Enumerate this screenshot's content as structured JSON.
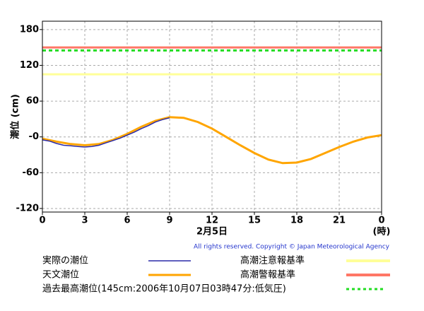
{
  "chart_data": {
    "type": "line",
    "y_label": "潮位 (cm)",
    "x_label": "2月5日",
    "x_unit": "(時)",
    "copyright": "All rights reserved. Copyright © Japan Meteorological Agency",
    "xlim": [
      0,
      24
    ],
    "xticks": [
      0,
      3,
      6,
      9,
      12,
      15,
      18,
      21,
      {
        "value": 24,
        "label": "0"
      }
    ],
    "ylim": [
      -126,
      194
    ],
    "yticks": [
      -120,
      -60,
      {
        "value": 0,
        "label": "-0"
      },
      60,
      120,
      180
    ],
    "grid": true,
    "series": [
      {
        "name": "実際の潮位",
        "color": "#2a2aa8",
        "x": [
          0,
          0.5,
          1,
          1.5,
          2,
          2.5,
          3,
          3.5,
          4,
          4.5,
          5,
          5.5,
          6,
          6.5,
          7,
          7.5,
          8,
          8.5,
          9
        ],
        "values": [
          -5,
          -7,
          -11,
          -14,
          -15,
          -16,
          -17,
          -16,
          -14,
          -10,
          -6,
          -2,
          3,
          8,
          14,
          19,
          25,
          29,
          32
        ]
      },
      {
        "name": "天文潮位",
        "color": "#ffa500",
        "x": [
          0,
          1,
          2,
          3,
          4,
          5,
          6,
          7,
          8,
          9,
          10,
          11,
          12,
          13,
          14,
          15,
          16,
          17,
          18,
          19,
          20,
          21,
          22,
          23,
          24
        ],
        "values": [
          -3,
          -8,
          -12,
          -14,
          -12,
          -5,
          5,
          17,
          27,
          33,
          32,
          25,
          14,
          0,
          -14,
          -27,
          -38,
          -44,
          -43,
          -37,
          -27,
          -17,
          -8,
          -1,
          3
        ]
      }
    ],
    "reference_lines": [
      {
        "name": "高潮注意報基準",
        "color": "#ffff99",
        "value": 105,
        "style": "solid"
      },
      {
        "name": "高潮警報基準",
        "color": "#ff7766",
        "value": 150,
        "style": "solid"
      },
      {
        "name": "過去最高潮位(145cm:2006年10月07日03時47分:低気圧)",
        "color": "#22dd22",
        "value": 145,
        "style": "dashed"
      }
    ]
  }
}
